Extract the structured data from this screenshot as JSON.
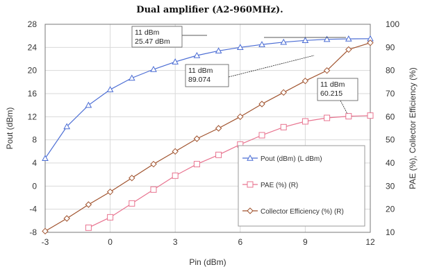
{
  "chart_data": {
    "type": "line",
    "title": "Dual amplifier (A2-960MHz).",
    "xlabel": "Pin (dBm)",
    "ylabel_left": "Pout (dBm)",
    "ylabel_right": "PAE (%), Collector Efficiency (%)",
    "xlim": [
      -3,
      12
    ],
    "ylim_left": [
      -8,
      28
    ],
    "ylim_right": [
      10,
      100
    ],
    "x_ticks": [
      "-3",
      "0",
      "3",
      "6",
      "9",
      "12"
    ],
    "y_left_ticks": [
      "-8",
      "-4",
      "0",
      "4",
      "8",
      "12",
      "16",
      "20",
      "24",
      "28"
    ],
    "y_right_ticks": [
      "10",
      "20",
      "30",
      "40",
      "50",
      "60",
      "70",
      "80",
      "90",
      "100"
    ],
    "x": [
      -3,
      -2,
      -1,
      0,
      1,
      2,
      3,
      4,
      5,
      6,
      7,
      8,
      9,
      10,
      11,
      12
    ],
    "grid": true,
    "legend_position": "bottom-right",
    "series": [
      {
        "name": "Pout (dBm) (L dBm)",
        "axis": "left",
        "color": "#4a6cd4",
        "marker": "triangle",
        "values": [
          4.8,
          10.3,
          14.0,
          16.7,
          18.7,
          20.2,
          21.5,
          22.6,
          23.4,
          24.0,
          24.5,
          24.9,
          25.2,
          25.4,
          25.47,
          25.5
        ]
      },
      {
        "name": "PAE (%) (R)",
        "axis": "right",
        "color": "#e8738f",
        "marker": "square",
        "values": [
          8.0,
          9.0,
          12.0,
          16.5,
          22.5,
          28.5,
          34.5,
          39.5,
          43.5,
          48.0,
          52.0,
          55.5,
          58.0,
          59.5,
          60.215,
          60.5
        ]
      },
      {
        "name": "Collector Efficiency (%) (R)",
        "axis": "right",
        "color": "#a0522d",
        "marker": "diamond",
        "values": [
          10.5,
          16.0,
          22.0,
          27.5,
          33.5,
          39.5,
          45.0,
          50.5,
          55.0,
          60.0,
          65.5,
          70.5,
          75.5,
          80.0,
          89.074,
          92.0
        ]
      }
    ],
    "annotations": [
      {
        "line1": "11 dBm",
        "line2": "25.47 dBm"
      },
      {
        "line1": "11 dBm",
        "line2": "89.074"
      },
      {
        "line1": "11 dBm",
        "line2": "60.215"
      }
    ]
  },
  "colors": {
    "grid": "#d9d9d9",
    "axis": "#666666",
    "legend_border": "#999999"
  }
}
